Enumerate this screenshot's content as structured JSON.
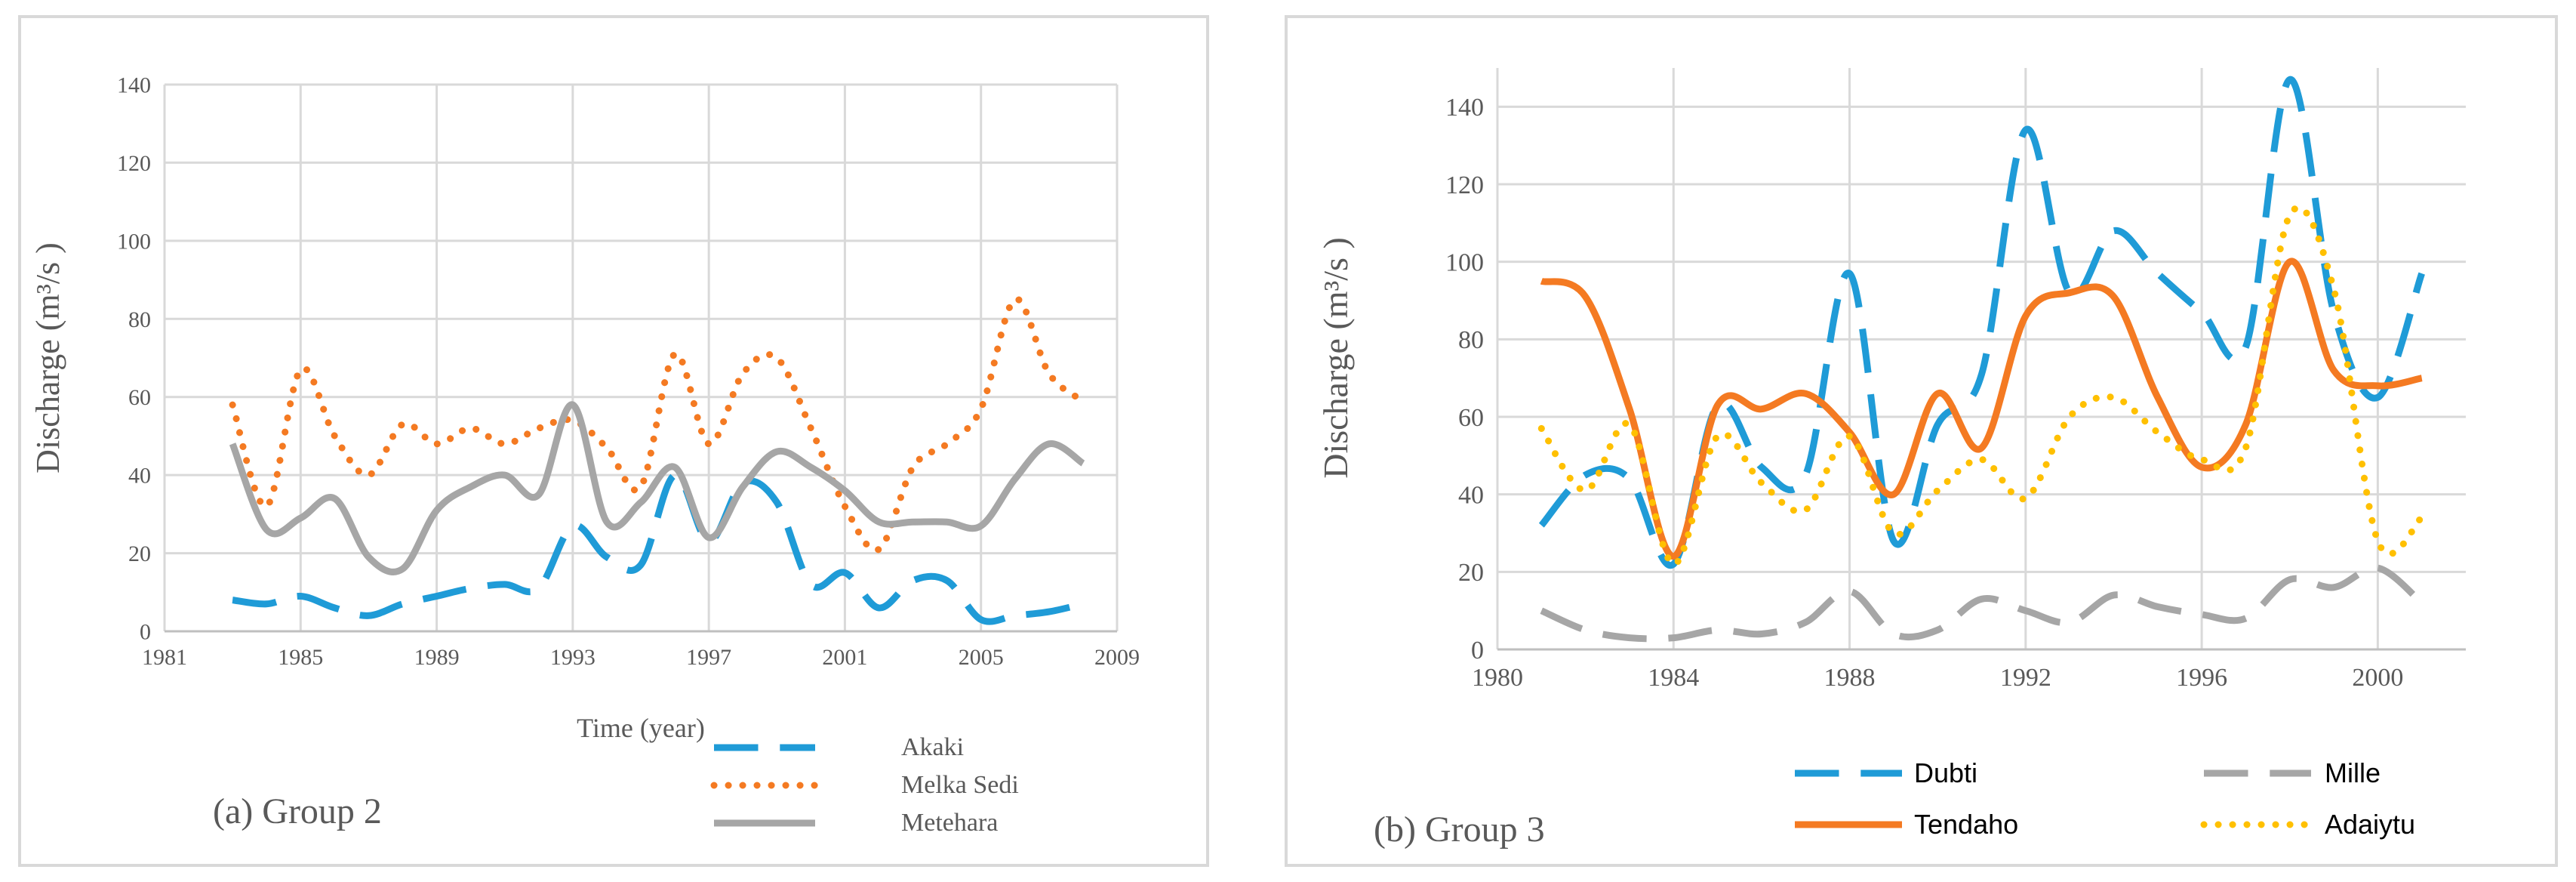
{
  "chart_data": [
    {
      "type": "line",
      "caption": "(a) Group 2",
      "xlabel": "Time (year)",
      "ylabel": "Discharge (m³/s )",
      "xlim": [
        1981,
        2009
      ],
      "ylim": [
        0,
        140
      ],
      "x_ticks": [
        "1981",
        "1985",
        "1989",
        "1993",
        "1997",
        "2001",
        "2005",
        "2009"
      ],
      "y_ticks": [
        "0",
        "20",
        "40",
        "60",
        "80",
        "100",
        "120",
        "140"
      ],
      "grid": true,
      "legend_position": "bottom-right",
      "x": [
        1983,
        1984,
        1985,
        1986,
        1987,
        1988,
        1989,
        1990,
        1991,
        1992,
        1993,
        1994,
        1995,
        1996,
        1997,
        1998,
        1999,
        2000,
        2001,
        2002,
        2003,
        2004,
        2005,
        2006,
        2007,
        2008
      ],
      "series": [
        {
          "name": "Akaki",
          "color": "#1f9bd7",
          "dash": "long-dash",
          "values": [
            8,
            7,
            9,
            6,
            4,
            7,
            9,
            11,
            12,
            11,
            27,
            19,
            17,
            40,
            23,
            38,
            33,
            12,
            15,
            6,
            13,
            13,
            3,
            4,
            5,
            7
          ]
        },
        {
          "name": "Melka Sedi",
          "color": "#f47a22",
          "dash": "dot",
          "values": [
            58,
            32,
            67,
            50,
            40,
            53,
            48,
            52,
            48,
            52,
            54,
            47,
            37,
            71,
            48,
            66,
            70,
            52,
            32,
            21,
            42,
            48,
            57,
            85,
            66,
            59
          ]
        },
        {
          "name": "Metehara",
          "color": "#a6a6a6",
          "dash": "solid",
          "values": [
            48,
            26,
            29,
            34,
            19,
            16,
            31,
            37,
            40,
            35,
            58,
            28,
            33,
            42,
            24,
            37,
            46,
            42,
            36,
            28,
            28,
            28,
            27,
            39,
            48,
            43
          ]
        }
      ]
    },
    {
      "type": "line",
      "caption": "(b) Group 3",
      "xlabel": "",
      "ylabel": "Discharge (m³/s )",
      "xlim": [
        1980,
        2002
      ],
      "ylim": [
        0,
        150
      ],
      "x_ticks": [
        "1980",
        "1984",
        "1988",
        "1992",
        "1996",
        "2000"
      ],
      "y_ticks": [
        "0",
        "20",
        "40",
        "60",
        "80",
        "100",
        "120",
        "140"
      ],
      "grid": true,
      "legend_position": "bottom",
      "x": [
        1981,
        1982,
        1983,
        1984,
        1985,
        1986,
        1987,
        1988,
        1989,
        1990,
        1991,
        1992,
        1993,
        1994,
        1995,
        1996,
        1997,
        1998,
        1999,
        2000,
        2001
      ],
      "series": [
        {
          "name": "Dubti",
          "color": "#1f9bd7",
          "dash": "long-dash",
          "values": [
            32,
            45,
            44,
            22,
            63,
            47,
            45,
            97,
            28,
            58,
            71,
            134,
            92,
            108,
            97,
            87,
            78,
            147,
            87,
            65,
            97
          ]
        },
        {
          "name": "Tendaho",
          "color": "#f47a22",
          "dash": "solid",
          "values": [
            95,
            91,
            62,
            24,
            63,
            62,
            66,
            56,
            40,
            66,
            52,
            86,
            92,
            91,
            65,
            47,
            58,
            100,
            72,
            68,
            70
          ]
        },
        {
          "name": "Mille",
          "color": "#a6a6a6",
          "dash": "long-dash",
          "values": [
            10,
            5,
            3,
            3,
            5,
            4,
            7,
            15,
            4,
            5,
            13,
            10,
            7,
            14,
            11,
            9,
            8,
            18,
            16,
            21,
            12
          ]
        },
        {
          "name": "Adaiytu",
          "color": "#ffc000",
          "dash": "dot",
          "values": [
            57,
            41,
            58,
            22,
            55,
            43,
            36,
            55,
            30,
            41,
            49,
            39,
            60,
            65,
            56,
            49,
            52,
            112,
            93,
            28,
            34
          ]
        }
      ]
    }
  ]
}
